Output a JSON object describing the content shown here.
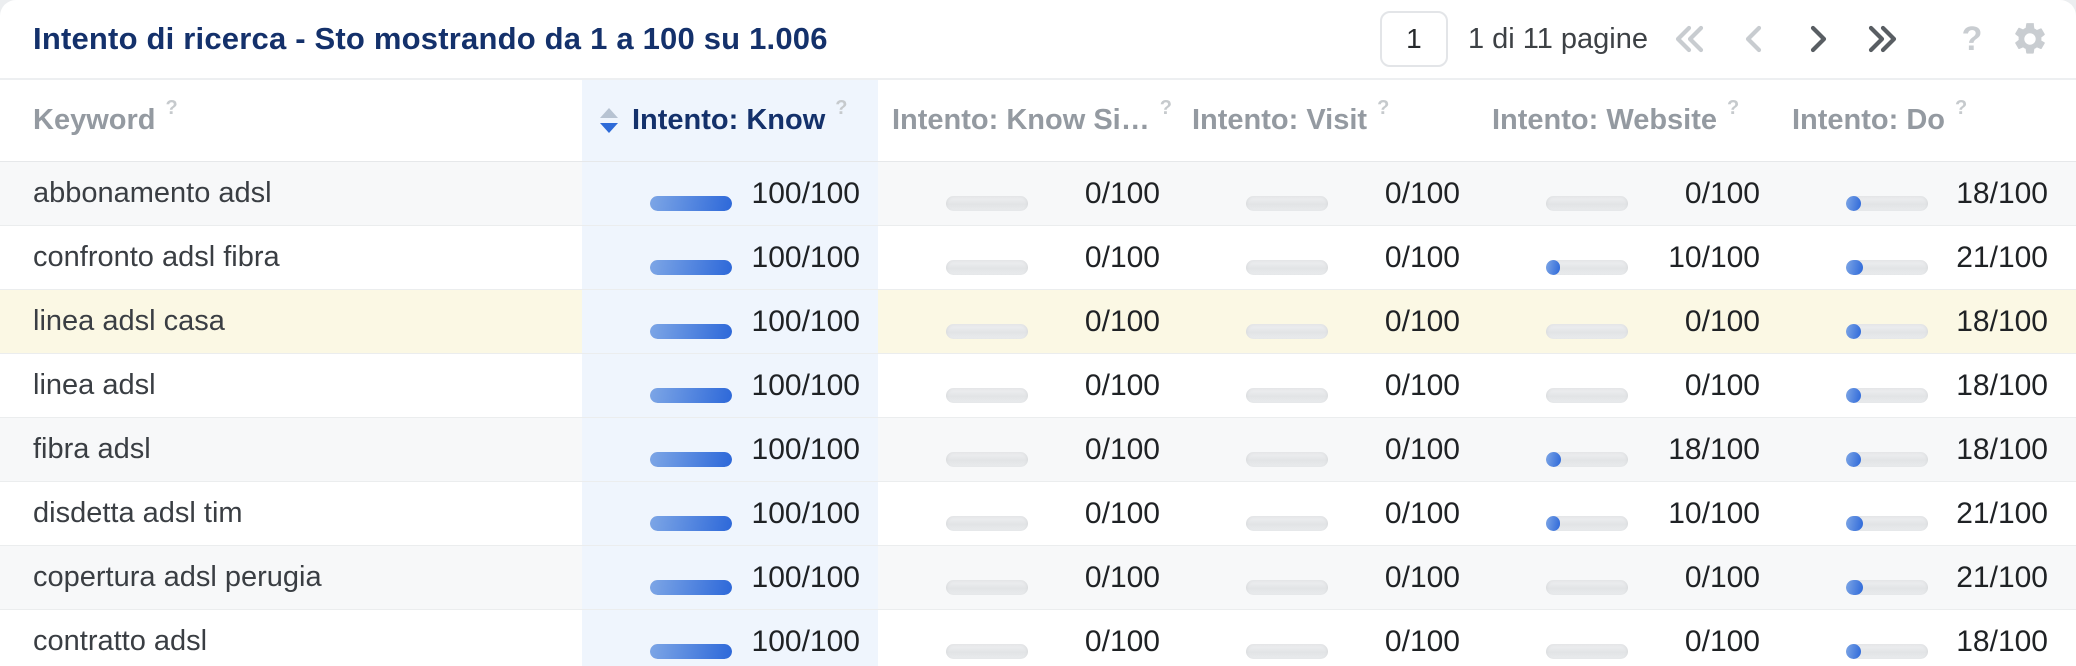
{
  "header": {
    "title": "Intento di ricerca - Sto mostrando da 1 a 100 su 1.006",
    "pagination": {
      "page_value": "1",
      "label": "1 di 11 pagine",
      "icons": {
        "first": "double-chevron-left",
        "prev": "chevron-left",
        "next": "chevron-right",
        "last": "double-chevron-right",
        "help": "?",
        "settings": "gear"
      },
      "first_enabled": false,
      "prev_enabled": false,
      "next_enabled": true,
      "last_enabled": true
    }
  },
  "table": {
    "columns": [
      {
        "key": "keyword",
        "label": "Keyword",
        "help": "?"
      },
      {
        "key": "know",
        "label": "Intento: Know",
        "help": "?",
        "sort": "desc"
      },
      {
        "key": "know_simple",
        "label": "Intento: Know Si…",
        "help": "?"
      },
      {
        "key": "visit",
        "label": "Intento: Visit",
        "help": "?"
      },
      {
        "key": "website",
        "label": "Intento: Website",
        "help": "?"
      },
      {
        "key": "do",
        "label": "Intento: Do",
        "help": "?"
      }
    ],
    "score_suffix": "/100",
    "score_max": 100,
    "rows": [
      {
        "keyword": "abbonamento adsl",
        "highlighted": false,
        "scores": {
          "know": 100,
          "know_simple": 0,
          "visit": 0,
          "website": 0,
          "do": 18
        }
      },
      {
        "keyword": "confronto adsl fibra",
        "highlighted": false,
        "scores": {
          "know": 100,
          "know_simple": 0,
          "visit": 0,
          "website": 10,
          "do": 21
        }
      },
      {
        "keyword": "linea adsl casa",
        "highlighted": true,
        "scores": {
          "know": 100,
          "know_simple": 0,
          "visit": 0,
          "website": 0,
          "do": 18
        }
      },
      {
        "keyword": "linea adsl",
        "highlighted": false,
        "scores": {
          "know": 100,
          "know_simple": 0,
          "visit": 0,
          "website": 0,
          "do": 18
        }
      },
      {
        "keyword": "fibra adsl",
        "highlighted": false,
        "scores": {
          "know": 100,
          "know_simple": 0,
          "visit": 0,
          "website": 18,
          "do": 18
        }
      },
      {
        "keyword": "disdetta adsl tim",
        "highlighted": false,
        "scores": {
          "know": 100,
          "know_simple": 0,
          "visit": 0,
          "website": 10,
          "do": 21
        }
      },
      {
        "keyword": "copertura adsl perugia",
        "highlighted": false,
        "scores": {
          "know": 100,
          "know_simple": 0,
          "visit": 0,
          "website": 0,
          "do": 21
        }
      },
      {
        "keyword": "contratto adsl",
        "highlighted": false,
        "scores": {
          "know": 100,
          "know_simple": 0,
          "visit": 0,
          "website": 0,
          "do": 18
        }
      }
    ]
  },
  "colors": {
    "accent_blue": "#2e6bd8",
    "title_navy": "#14316b",
    "know_column_bg": "#eff5fd",
    "highlight_row_bg": "#fbf8e4",
    "stripe_row_bg": "#f7f8f9",
    "bar_track": "#e7e9eb",
    "bar_fill_start": "#7da6e6",
    "bar_fill_end": "#2d68d9",
    "header_gray": "#949aa1",
    "disabled_icon_gray": "#c8ccd0",
    "enabled_icon_gray": "#595e63"
  }
}
